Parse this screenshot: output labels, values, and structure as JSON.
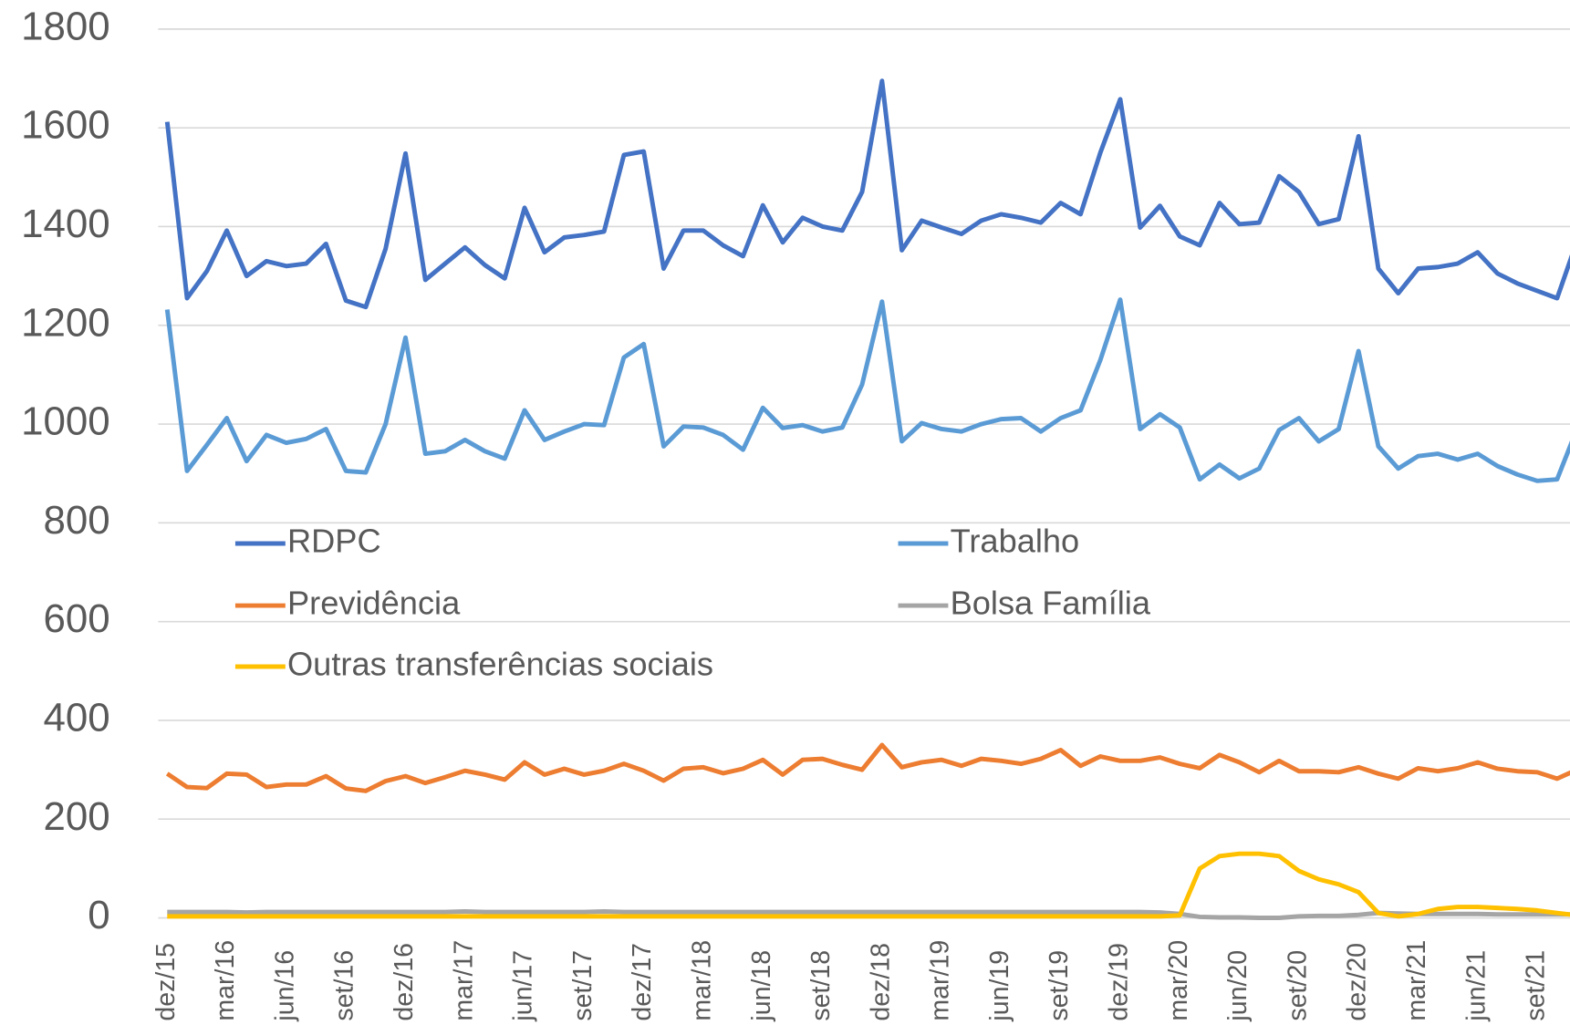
{
  "chart_data": {
    "type": "line",
    "categories": [
      "dez/15",
      null,
      null,
      "mar/16",
      null,
      null,
      "jun/16",
      null,
      null,
      "set/16",
      null,
      null,
      "dez/16",
      null,
      null,
      "mar/17",
      null,
      null,
      "jun/17",
      null,
      null,
      "set/17",
      null,
      null,
      "dez/17",
      null,
      null,
      "mar/18",
      null,
      null,
      "jun/18",
      null,
      null,
      "set/18",
      null,
      null,
      "dez/18",
      null,
      null,
      "mar/19",
      null,
      null,
      "jun/19",
      null,
      null,
      "set/19",
      null,
      null,
      "dez/19",
      null,
      null,
      "mar/20",
      null,
      null,
      "jun/20",
      null,
      null,
      "set/20",
      null,
      null,
      "dez/20",
      null,
      null,
      "mar/21",
      null,
      null,
      "jun/21",
      null,
      null,
      "set/21",
      null,
      null
    ],
    "series": [
      {
        "name": "RDPC",
        "color": "#4472c4",
        "values": [
          1612,
          1255,
          1310,
          1392,
          1300,
          1330,
          1320,
          1325,
          1365,
          1250,
          1237,
          1355,
          1548,
          1292,
          1325,
          1358,
          1322,
          1295,
          1438,
          1348,
          1378,
          1383,
          1390,
          1545,
          1552,
          1315,
          1392,
          1392,
          1362,
          1340,
          1443,
          1368,
          1418,
          1400,
          1392,
          1470,
          1695,
          1352,
          1412,
          1398,
          1385,
          1412,
          1425,
          1418,
          1408,
          1448,
          1425,
          1550,
          1658,
          1398,
          1442,
          1380,
          1362,
          1448,
          1405,
          1408,
          1502,
          1470,
          1405,
          1415,
          1583,
          1315,
          1265,
          1315,
          1318,
          1325,
          1348,
          1305,
          1285,
          1270,
          1255,
          1370
        ]
      },
      {
        "name": "Trabalho",
        "color": "#5b9bd5",
        "values": [
          1232,
          905,
          958,
          1012,
          925,
          978,
          962,
          970,
          990,
          905,
          902,
          1000,
          1175,
          940,
          945,
          968,
          945,
          930,
          1028,
          968,
          985,
          1000,
          998,
          1135,
          1162,
          955,
          995,
          993,
          978,
          948,
          1033,
          992,
          998,
          985,
          993,
          1080,
          1248,
          965,
          1002,
          990,
          985,
          1000,
          1010,
          1012,
          985,
          1012,
          1028,
          1130,
          1252,
          990,
          1020,
          993,
          888,
          918,
          890,
          910,
          988,
          1012,
          965,
          990,
          1148,
          955,
          910,
          935,
          940,
          928,
          940,
          915,
          898,
          885,
          888,
          990
        ]
      },
      {
        "name": "Previdência",
        "color": "#ed7d31",
        "values": [
          292,
          265,
          263,
          292,
          290,
          265,
          270,
          270,
          287,
          262,
          257,
          277,
          287,
          273,
          285,
          298,
          290,
          280,
          315,
          290,
          302,
          290,
          298,
          312,
          298,
          278,
          302,
          305,
          293,
          302,
          320,
          290,
          320,
          322,
          310,
          300,
          350,
          305,
          315,
          320,
          308,
          322,
          318,
          312,
          322,
          340,
          308,
          327,
          318,
          318,
          325,
          312,
          303,
          330,
          315,
          295,
          318,
          297,
          297,
          295,
          305,
          292,
          282,
          303,
          297,
          303,
          315,
          302,
          297,
          295,
          282,
          300
        ]
      },
      {
        "name": "Bolsa Família",
        "color": "#a5a5a5",
        "values": [
          12,
          12,
          12,
          12,
          11,
          12,
          12,
          12,
          12,
          12,
          12,
          12,
          12,
          12,
          12,
          13,
          12,
          12,
          12,
          12,
          12,
          12,
          13,
          12,
          12,
          12,
          12,
          12,
          12,
          12,
          12,
          12,
          12,
          12,
          12,
          12,
          12,
          12,
          12,
          12,
          12,
          12,
          12,
          12,
          12,
          12,
          12,
          12,
          12,
          12,
          11,
          8,
          2,
          1,
          1,
          0,
          0,
          3,
          4,
          4,
          6,
          10,
          9,
          8,
          8,
          8,
          8,
          7,
          7,
          7,
          7,
          7
        ]
      },
      {
        "name": "Outras transferências sociais",
        "color": "#ffc000",
        "values": [
          3,
          3,
          3,
          3,
          3,
          3,
          3,
          3,
          3,
          3,
          3,
          3,
          3,
          3,
          3,
          3,
          3,
          3,
          3,
          3,
          3,
          3,
          3,
          3,
          3,
          3,
          3,
          3,
          3,
          3,
          3,
          3,
          3,
          3,
          3,
          3,
          3,
          3,
          3,
          3,
          3,
          3,
          3,
          3,
          3,
          3,
          3,
          3,
          3,
          3,
          3,
          5,
          100,
          125,
          130,
          130,
          125,
          95,
          78,
          68,
          52,
          10,
          3,
          8,
          18,
          22,
          22,
          20,
          18,
          15,
          10,
          5
        ]
      }
    ],
    "ylim": [
      0,
      1800
    ],
    "yticks": [
      0,
      200,
      400,
      600,
      800,
      1000,
      1200,
      1400,
      1600,
      1800
    ],
    "grid": true
  }
}
